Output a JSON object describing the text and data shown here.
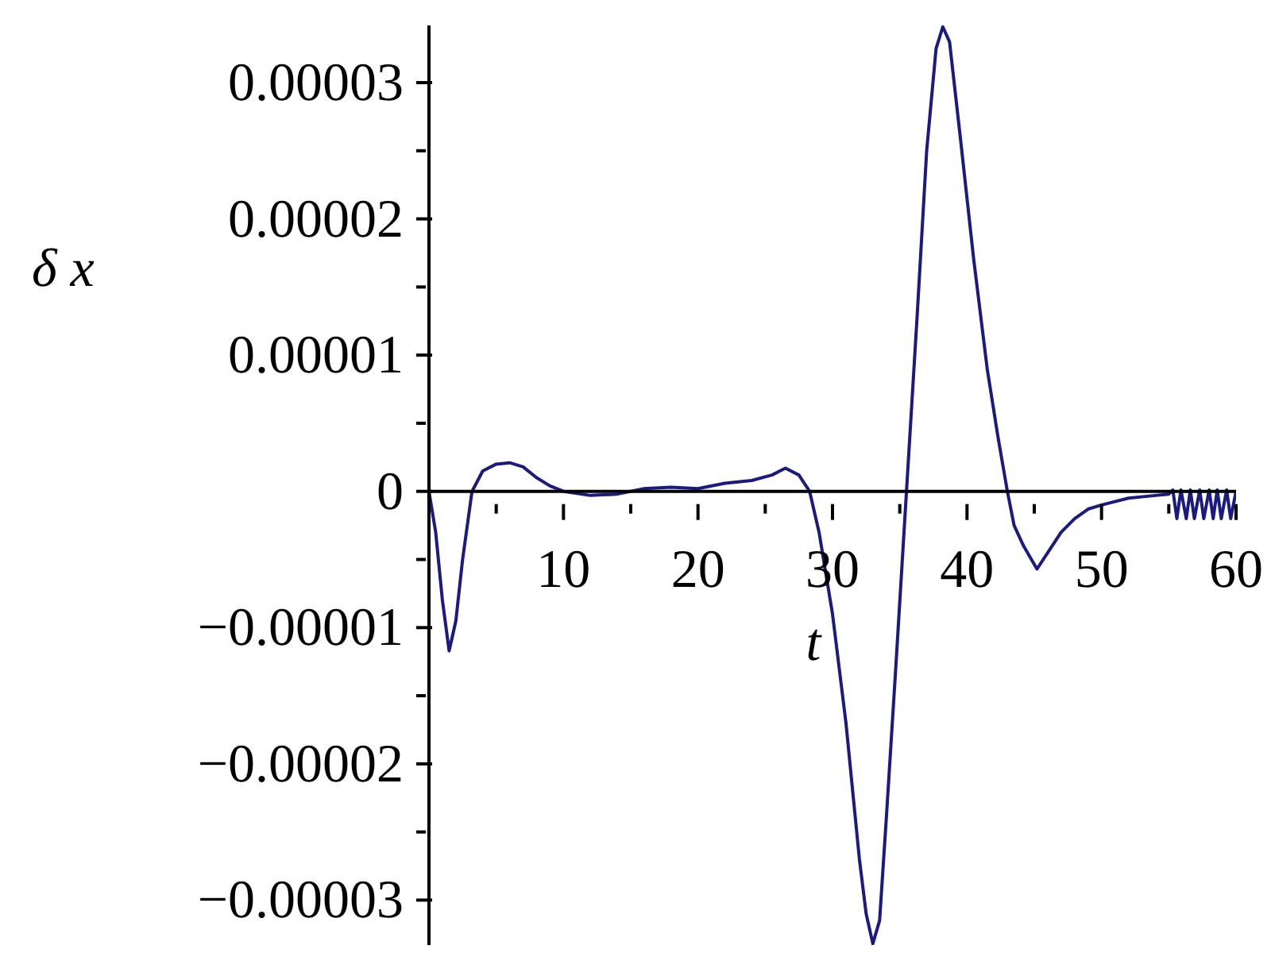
{
  "chart_data": {
    "type": "line",
    "xlabel": "t",
    "ylabel": "δ x",
    "x": [
      0,
      0.5,
      1,
      1.5,
      2,
      2.5,
      3.2,
      4,
      5,
      6,
      7,
      8,
      9,
      10,
      12,
      14,
      16,
      18,
      20,
      22,
      24,
      25.5,
      26.5,
      27.5,
      28.3,
      29,
      30,
      31,
      32,
      32.5,
      33,
      33.5,
      34,
      34.7,
      35.5,
      36.3,
      37,
      37.7,
      38.2,
      38.7,
      39.5,
      40.5,
      41.5,
      42.3,
      43,
      43.5,
      44.2,
      45.2,
      46,
      47,
      48,
      49,
      50,
      52,
      54,
      55,
      55.3,
      55.6,
      55.9,
      56.3,
      56.6,
      56.9,
      57.3,
      57.6,
      58,
      58.3,
      58.6,
      58.9,
      59.3,
      59.6,
      60
    ],
    "series": [
      {
        "color": "#1a1a80",
        "values": [
          0,
          -3e-06,
          -8e-06,
          -1.17e-05,
          -9.5e-06,
          -5e-06,
          0,
          1.5e-06,
          2e-06,
          2.1e-06,
          1.8e-06,
          1e-06,
          4e-07,
          0,
          -3e-07,
          -2e-07,
          2e-07,
          3e-07,
          2e-07,
          6e-07,
          8e-07,
          1.2e-06,
          1.7e-06,
          1.2e-06,
          0,
          -3e-06,
          -9e-06,
          -1.7e-05,
          -2.7e-05,
          -3.1e-05,
          -3.32e-05,
          -3.15e-05,
          -2.4e-05,
          -1.3e-05,
          0,
          1.3e-05,
          2.5e-05,
          3.25e-05,
          3.41e-05,
          3.3e-05,
          2.6e-05,
          1.7e-05,
          9e-06,
          4e-06,
          0,
          -2.5e-06,
          -4e-06,
          -5.7e-06,
          -4.5e-06,
          -3e-06,
          -2e-06,
          -1.3e-06,
          -1e-06,
          -5e-07,
          -3e-07,
          -2e-07,
          1e-07,
          -2e-06,
          1e-07,
          -2e-06,
          1e-07,
          -2e-06,
          1e-07,
          -2e-06,
          1e-07,
          -2e-06,
          1e-07,
          -2e-06,
          1e-07,
          -2e-06,
          0
        ]
      }
    ],
    "xlim": [
      0,
      60
    ],
    "xticks": [
      {
        "value": 5,
        "label": null
      },
      10,
      {
        "value": 15,
        "label": null
      },
      20,
      {
        "value": 25,
        "label": null
      },
      30,
      {
        "value": 35,
        "label": null
      },
      40,
      {
        "value": 45,
        "label": null
      },
      50,
      {
        "value": 55,
        "label": null
      },
      60
    ],
    "ylim": [
      -3.33e-05,
      3.42e-05
    ],
    "yticks": [
      {
        "value": -3e-05,
        "label": "−0.00003"
      },
      {
        "value": -2.5e-05,
        "label": null
      },
      {
        "value": -2e-05,
        "label": "−0.00002"
      },
      {
        "value": -1.5e-05,
        "label": null
      },
      {
        "value": -1e-05,
        "label": "−0.00001"
      },
      {
        "value": -5e-06,
        "label": null
      },
      {
        "value": 0,
        "label": "0"
      },
      {
        "value": 5e-06,
        "label": null
      },
      {
        "value": 1e-05,
        "label": "0.00001"
      },
      {
        "value": 1.5e-05,
        "label": null
      },
      {
        "value": 2e-05,
        "label": "0.00002"
      },
      {
        "value": 2.5e-05,
        "label": null
      },
      {
        "value": 3e-05,
        "label": "0.00003"
      }
    ],
    "grid": false,
    "legend": false,
    "marker": "none",
    "line_style": "solid"
  }
}
